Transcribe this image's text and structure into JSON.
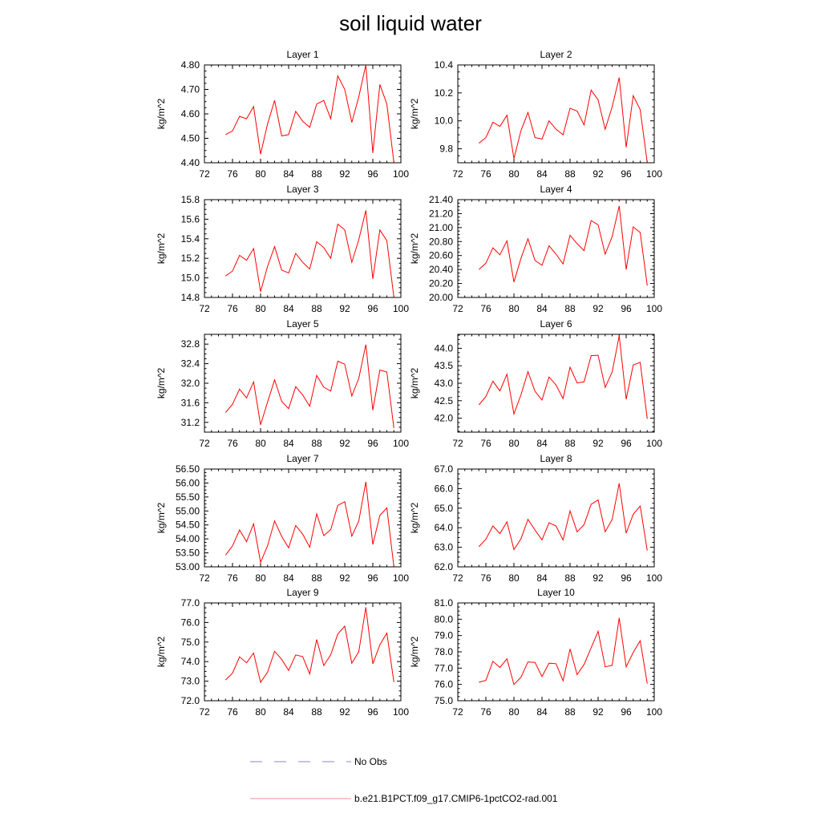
{
  "page": {
    "title": "soil liquid water"
  },
  "legend": {
    "items": [
      {
        "label": "No Obs",
        "color": "#8a8ac8",
        "dash": "dashed"
      },
      {
        "label": "b.e21.B1PCT.f09_g17.CMIP6-1pctCO2-rad.001",
        "color": "#e8909a",
        "dash": "solid"
      }
    ]
  },
  "chart_data": [
    {
      "type": "line",
      "title": "Layer 1",
      "ylabel": "kg/m^2",
      "xlim": [
        72,
        100
      ],
      "ylim": [
        4.4,
        4.8
      ],
      "yticks": [
        "4.40",
        "4.50",
        "4.60",
        "4.70",
        "4.80"
      ],
      "xticks": [
        "72",
        "76",
        "80",
        "84",
        "88",
        "92",
        "96",
        "100"
      ],
      "series": [
        {
          "color": "#ff0000",
          "x": [
            75,
            76,
            77,
            78,
            79,
            80,
            81,
            82,
            83,
            84,
            85,
            86,
            87,
            88,
            89,
            90,
            91,
            92,
            93,
            94,
            95,
            96,
            97,
            98,
            99
          ],
          "y": [
            4.515,
            4.53,
            4.59,
            4.58,
            4.63,
            4.435,
            4.56,
            4.655,
            4.51,
            4.515,
            4.61,
            4.57,
            4.545,
            4.64,
            4.655,
            4.58,
            4.755,
            4.7,
            4.565,
            4.67,
            4.8,
            4.44,
            4.72,
            4.64,
            4.4
          ]
        }
      ]
    },
    {
      "type": "line",
      "title": "Layer 2",
      "ylabel": "kg/m^2",
      "xlim": [
        72,
        100
      ],
      "ylim": [
        9.7,
        10.4
      ],
      "yticks": [
        "9.8",
        "10.0",
        "10.2",
        "10.4"
      ],
      "xticks": [
        "72",
        "76",
        "80",
        "84",
        "88",
        "92",
        "96",
        "100"
      ],
      "series": [
        {
          "color": "#ff0000",
          "x": [
            75,
            76,
            77,
            78,
            79,
            80,
            81,
            82,
            83,
            84,
            85,
            86,
            87,
            88,
            89,
            90,
            91,
            92,
            93,
            94,
            95,
            96,
            97,
            98,
            99
          ],
          "y": [
            9.84,
            9.88,
            9.99,
            9.96,
            10.04,
            9.73,
            9.93,
            10.06,
            9.88,
            9.87,
            10.0,
            9.94,
            9.9,
            10.09,
            10.07,
            9.97,
            10.22,
            10.15,
            9.94,
            10.1,
            10.31,
            9.81,
            10.18,
            10.08,
            9.7
          ]
        }
      ]
    },
    {
      "type": "line",
      "title": "Layer 3",
      "ylabel": "kg/m^2",
      "xlim": [
        72,
        100
      ],
      "ylim": [
        14.8,
        15.8
      ],
      "yticks": [
        "14.8",
        "15.0",
        "15.2",
        "15.4",
        "15.6",
        "15.8"
      ],
      "xticks": [
        "72",
        "76",
        "80",
        "84",
        "88",
        "92",
        "96",
        "100"
      ],
      "series": [
        {
          "color": "#ff0000",
          "x": [
            75,
            76,
            77,
            78,
            79,
            80,
            81,
            82,
            83,
            84,
            85,
            86,
            87,
            88,
            89,
            90,
            91,
            92,
            93,
            94,
            95,
            96,
            97,
            98,
            99
          ],
          "y": [
            15.02,
            15.07,
            15.23,
            15.18,
            15.3,
            14.86,
            15.12,
            15.32,
            15.08,
            15.05,
            15.25,
            15.16,
            15.09,
            15.37,
            15.31,
            15.2,
            15.55,
            15.49,
            15.16,
            15.39,
            15.69,
            14.99,
            15.49,
            15.38,
            14.8
          ]
        }
      ]
    },
    {
      "type": "line",
      "title": "Layer 4",
      "ylabel": "kg/m^2",
      "xlim": [
        72,
        100
      ],
      "ylim": [
        20.0,
        21.4
      ],
      "yticks": [
        "20.00",
        "20.20",
        "20.40",
        "20.60",
        "20.80",
        "21.00",
        "21.20",
        "21.40"
      ],
      "xticks": [
        "72",
        "76",
        "80",
        "84",
        "88",
        "92",
        "96",
        "100"
      ],
      "series": [
        {
          "color": "#ff0000",
          "x": [
            75,
            76,
            77,
            78,
            79,
            80,
            81,
            82,
            83,
            84,
            85,
            86,
            87,
            88,
            89,
            90,
            91,
            92,
            93,
            94,
            95,
            96,
            97,
            98,
            99
          ],
          "y": [
            20.4,
            20.49,
            20.71,
            20.61,
            20.81,
            20.22,
            20.56,
            20.84,
            20.53,
            20.46,
            20.74,
            20.62,
            20.48,
            20.89,
            20.77,
            20.67,
            21.1,
            21.04,
            20.62,
            20.87,
            21.31,
            20.4,
            21.01,
            20.93,
            20.17
          ]
        }
      ]
    },
    {
      "type": "line",
      "title": "Layer 5",
      "ylabel": "kg/m^2",
      "xlim": [
        72,
        100
      ],
      "ylim": [
        31.0,
        33.0
      ],
      "yticks": [
        "31.2",
        "31.6",
        "32.0",
        "32.4",
        "32.8"
      ],
      "xticks": [
        "72",
        "76",
        "80",
        "84",
        "88",
        "92",
        "96",
        "100"
      ],
      "series": [
        {
          "color": "#ff0000",
          "x": [
            75,
            76,
            77,
            78,
            79,
            80,
            81,
            82,
            83,
            84,
            85,
            86,
            87,
            88,
            89,
            90,
            91,
            92,
            93,
            94,
            95,
            96,
            97,
            98,
            99
          ],
          "y": [
            31.4,
            31.57,
            31.88,
            31.7,
            32.03,
            31.15,
            31.62,
            32.07,
            31.63,
            31.48,
            31.93,
            31.76,
            31.53,
            32.16,
            31.92,
            31.84,
            32.45,
            32.39,
            31.74,
            32.1,
            32.79,
            31.45,
            32.27,
            32.23,
            31.08
          ]
        }
      ]
    },
    {
      "type": "line",
      "title": "Layer 6",
      "ylabel": "kg/m^2",
      "xlim": [
        72,
        100
      ],
      "ylim": [
        41.6,
        44.4
      ],
      "yticks": [
        "42.0",
        "42.5",
        "43.0",
        "43.5",
        "44.0"
      ],
      "xticks": [
        "72",
        "76",
        "80",
        "84",
        "88",
        "92",
        "96",
        "100"
      ],
      "series": [
        {
          "color": "#ff0000",
          "x": [
            75,
            76,
            77,
            78,
            79,
            80,
            81,
            82,
            83,
            84,
            85,
            86,
            87,
            88,
            89,
            90,
            91,
            92,
            93,
            94,
            95,
            96,
            97,
            98,
            99
          ],
          "y": [
            42.38,
            42.62,
            43.06,
            42.78,
            43.26,
            42.12,
            42.67,
            43.33,
            42.77,
            42.52,
            43.18,
            42.95,
            42.56,
            43.46,
            43.01,
            43.04,
            43.79,
            43.8,
            42.88,
            43.32,
            44.36,
            42.54,
            43.52,
            43.6,
            41.98
          ]
        }
      ]
    },
    {
      "type": "line",
      "title": "Layer 7",
      "ylabel": "kg/m^2",
      "xlim": [
        72,
        100
      ],
      "ylim": [
        53.0,
        56.5
      ],
      "yticks": [
        "53.00",
        "53.50",
        "54.00",
        "54.50",
        "55.00",
        "55.50",
        "56.00",
        "56.50"
      ],
      "xticks": [
        "72",
        "76",
        "80",
        "84",
        "88",
        "92",
        "96",
        "100"
      ],
      "series": [
        {
          "color": "#ff0000",
          "x": [
            75,
            76,
            77,
            78,
            79,
            80,
            81,
            82,
            83,
            84,
            85,
            86,
            87,
            88,
            89,
            90,
            91,
            92,
            93,
            94,
            95,
            96,
            97,
            98,
            99
          ],
          "y": [
            53.42,
            53.75,
            54.32,
            53.9,
            54.54,
            53.16,
            53.76,
            54.64,
            54.09,
            53.68,
            54.48,
            54.17,
            53.7,
            54.9,
            54.12,
            54.33,
            55.2,
            55.33,
            54.1,
            54.64,
            56.04,
            53.8,
            54.84,
            55.11,
            53.0
          ]
        }
      ]
    },
    {
      "type": "line",
      "title": "Layer 8",
      "ylabel": "kg/m^2",
      "xlim": [
        72,
        100
      ],
      "ylim": [
        62.0,
        67.0
      ],
      "yticks": [
        "62.0",
        "63.0",
        "64.0",
        "65.0",
        "66.0",
        "67.0"
      ],
      "xticks": [
        "72",
        "76",
        "80",
        "84",
        "88",
        "92",
        "96",
        "100"
      ],
      "series": [
        {
          "color": "#ff0000",
          "x": [
            75,
            76,
            77,
            78,
            79,
            80,
            81,
            82,
            83,
            84,
            85,
            86,
            87,
            88,
            89,
            90,
            91,
            92,
            93,
            94,
            95,
            96,
            97,
            98,
            99
          ],
          "y": [
            63.03,
            63.41,
            64.09,
            63.7,
            64.3,
            62.88,
            63.43,
            64.43,
            63.88,
            63.38,
            64.25,
            64.09,
            63.37,
            64.86,
            63.79,
            64.16,
            65.2,
            65.42,
            63.79,
            64.42,
            66.27,
            63.72,
            64.69,
            65.11,
            62.83
          ]
        }
      ]
    },
    {
      "type": "line",
      "title": "Layer 9",
      "ylabel": "kg/m^2",
      "xlim": [
        72,
        100
      ],
      "ylim": [
        72.0,
        77.0
      ],
      "yticks": [
        "72.0",
        "73.0",
        "74.0",
        "75.0",
        "76.0",
        "77.0"
      ],
      "xticks": [
        "72",
        "76",
        "80",
        "84",
        "88",
        "92",
        "96",
        "100"
      ],
      "series": [
        {
          "color": "#ff0000",
          "x": [
            75,
            76,
            77,
            78,
            79,
            80,
            81,
            82,
            83,
            84,
            85,
            86,
            87,
            88,
            89,
            90,
            91,
            92,
            93,
            94,
            95,
            96,
            97,
            98,
            99
          ],
          "y": [
            73.06,
            73.41,
            74.24,
            73.94,
            74.44,
            72.94,
            73.47,
            74.53,
            74.12,
            73.55,
            74.34,
            74.26,
            73.37,
            75.13,
            73.8,
            74.35,
            75.41,
            75.81,
            73.92,
            74.51,
            76.78,
            73.89,
            74.86,
            75.46,
            72.95
          ]
        }
      ]
    },
    {
      "type": "line",
      "title": "Layer 10",
      "ylabel": "kg/m^2",
      "xlim": [
        72,
        100
      ],
      "ylim": [
        75.0,
        81.0
      ],
      "yticks": [
        "75.0",
        "76.0",
        "77.0",
        "78.0",
        "79.0",
        "80.0",
        "81.0"
      ],
      "xticks": [
        "72",
        "76",
        "80",
        "84",
        "88",
        "92",
        "96",
        "100"
      ],
      "series": [
        {
          "color": "#ff0000",
          "x": [
            75,
            76,
            77,
            78,
            79,
            80,
            81,
            82,
            83,
            84,
            85,
            86,
            87,
            88,
            89,
            90,
            91,
            92,
            93,
            94,
            95,
            96,
            97,
            98,
            99
          ],
          "y": [
            76.13,
            76.25,
            77.42,
            77.04,
            77.57,
            76.0,
            76.44,
            77.38,
            77.35,
            76.48,
            77.3,
            77.27,
            76.22,
            78.18,
            76.6,
            77.23,
            78.25,
            79.26,
            77.08,
            77.17,
            80.08,
            77.08,
            77.96,
            78.68,
            76.05
          ]
        }
      ]
    }
  ]
}
